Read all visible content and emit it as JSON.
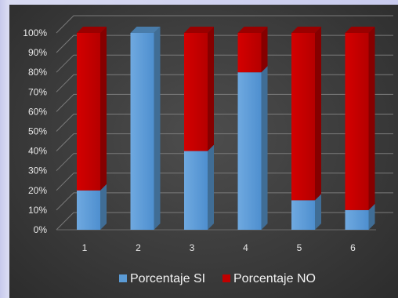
{
  "chart_data": {
    "type": "bar",
    "stacked": true,
    "percent": true,
    "three_d": true,
    "categories": [
      "1",
      "2",
      "3",
      "4",
      "5",
      "6"
    ],
    "series": [
      {
        "name": "Porcentaje SI",
        "values": [
          20,
          100,
          40,
          80,
          15,
          10
        ],
        "color": "#5b9bd5"
      },
      {
        "name": "Porcentaje NO",
        "values": [
          80,
          0,
          60,
          20,
          85,
          90
        ],
        "color": "#c00000"
      }
    ],
    "y_ticks": [
      "0%",
      "10%",
      "20%",
      "30%",
      "40%",
      "50%",
      "60%",
      "70%",
      "80%",
      "90%",
      "100%"
    ],
    "ylim": [
      0,
      100
    ],
    "grid": true,
    "legend_position": "bottom"
  }
}
